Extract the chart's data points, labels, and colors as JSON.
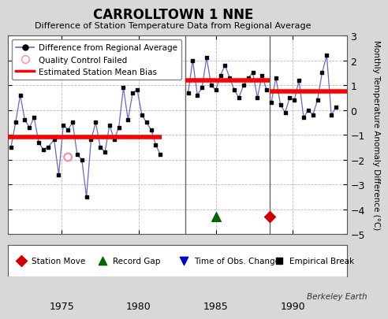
{
  "title": "CARROLLTOWN 1 NNE",
  "subtitle": "Difference of Station Temperature Data from Regional Average",
  "ylabel": "Monthly Temperature Anomaly Difference (°C)",
  "background_color": "#d8d8d8",
  "plot_bg_color": "#ffffff",
  "xlim": [
    1971.5,
    1993.5
  ],
  "ylim": [
    -5,
    3
  ],
  "yticks": [
    -5,
    -4,
    -3,
    -2,
    -1,
    0,
    1,
    2,
    3
  ],
  "xticks": [
    1975,
    1980,
    1985,
    1990
  ],
  "segment1_bias": -1.1,
  "segment1_start": 1971.5,
  "segment1_end": 1981.5,
  "segment2_bias": 1.2,
  "segment2_start": 1983.0,
  "segment2_end": 1988.5,
  "segment3_bias": 0.75,
  "segment3_start": 1988.5,
  "segment3_end": 1993.5,
  "vline1_x": 1983.0,
  "vline2_x": 1988.5,
  "record_gap_x": 1985.0,
  "station_move_x": 1988.5,
  "series1_x": [
    1971.7,
    1972.0,
    1972.3,
    1972.6,
    1972.9,
    1973.2,
    1973.5,
    1973.8,
    1974.1,
    1974.5,
    1974.8,
    1975.1,
    1975.4,
    1975.7,
    1976.0,
    1976.3,
    1976.6,
    1976.9,
    1977.2,
    1977.5,
    1977.8,
    1978.1,
    1978.4,
    1978.7,
    1979.0,
    1979.3,
    1979.6,
    1979.9,
    1980.2,
    1980.5,
    1980.8,
    1981.1,
    1981.4
  ],
  "series1_y": [
    -1.5,
    -0.5,
    0.6,
    -0.4,
    -0.7,
    -0.3,
    -1.3,
    -1.6,
    -1.5,
    -1.2,
    -2.6,
    -0.6,
    -0.8,
    -0.5,
    -1.8,
    -2.0,
    -3.5,
    -1.2,
    -0.5,
    -1.5,
    -1.7,
    -0.6,
    -1.2,
    -0.7,
    0.9,
    -0.4,
    0.7,
    0.8,
    -0.2,
    -0.5,
    -0.8,
    -1.4,
    -1.8
  ],
  "qc_fail_x": [
    1975.4
  ],
  "qc_fail_y": [
    -1.9
  ],
  "series2_x": [
    1983.2,
    1983.5,
    1983.8,
    1984.1,
    1984.4,
    1984.7,
    1985.0,
    1985.3,
    1985.6,
    1985.9,
    1986.2,
    1986.5,
    1986.8,
    1987.1,
    1987.4,
    1987.7,
    1988.0,
    1988.3
  ],
  "series2_y": [
    0.7,
    2.0,
    0.6,
    0.9,
    2.1,
    1.0,
    0.8,
    1.4,
    1.8,
    1.3,
    0.8,
    0.5,
    1.0,
    1.3,
    1.5,
    0.5,
    1.4,
    0.8
  ],
  "series3_x": [
    1988.6,
    1988.9,
    1989.2,
    1989.5,
    1989.8,
    1990.1,
    1990.4,
    1990.7,
    1991.0,
    1991.3,
    1991.6,
    1991.9,
    1992.2,
    1992.5,
    1992.8
  ],
  "series3_y": [
    0.3,
    1.3,
    0.2,
    -0.1,
    0.5,
    0.4,
    1.2,
    -0.3,
    0.0,
    -0.2,
    0.4,
    1.5,
    2.2,
    -0.2,
    0.1
  ],
  "line_color": "#6666cc",
  "dot_color": "#000000",
  "bias_color": "#ff0000",
  "bias_linewidth": 4.0,
  "vline_color": "#666666",
  "footer_text": "Berkeley Earth"
}
